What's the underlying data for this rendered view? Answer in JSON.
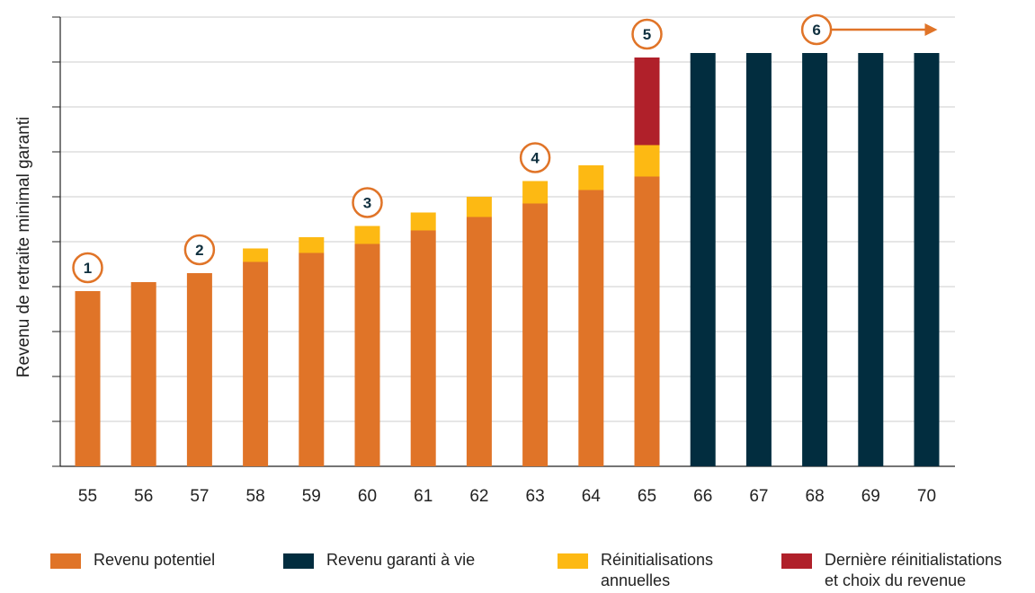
{
  "colors": {
    "potential": "#e07428",
    "lifetime": "#022d3f",
    "resets": "#fdb913",
    "final": "#b0202a",
    "badge": "#e07428",
    "grid": "#cccccc",
    "axis": "#222222"
  },
  "legend": [
    {
      "key": "potential",
      "lines": [
        "Revenu potentiel"
      ]
    },
    {
      "key": "lifetime",
      "lines": [
        "Revenu garanti à vie"
      ]
    },
    {
      "key": "resets",
      "lines": [
        "Réinitialisations",
        "annuelles"
      ]
    },
    {
      "key": "final",
      "lines": [
        "Dernière réinitialistations",
        "et choix du revenue"
      ]
    }
  ],
  "badges": [
    "1",
    "2",
    "3",
    "4",
    "5",
    "6"
  ],
  "chart_data": {
    "type": "bar",
    "stacked": true,
    "ylabel": "Revenu de retraite minimal garanti",
    "xlabel": "",
    "y_tick_labels_shown": false,
    "ylim": [
      0,
      10
    ],
    "grid": true,
    "legend_position": "bottom",
    "categories": [
      "55",
      "56",
      "57",
      "58",
      "59",
      "60",
      "61",
      "62",
      "63",
      "64",
      "65",
      "66",
      "67",
      "68",
      "69",
      "70"
    ],
    "series": [
      {
        "name": "Revenu potentiel",
        "key": "potential",
        "values": [
          3.9,
          4.1,
          4.3,
          4.55,
          4.75,
          4.95,
          5.25,
          5.55,
          5.85,
          6.15,
          6.45,
          0,
          0,
          0,
          0,
          0
        ]
      },
      {
        "name": "Revenu garanti à vie",
        "key": "lifetime",
        "values": [
          0,
          0,
          0,
          0,
          0,
          0,
          0,
          0,
          0,
          0,
          0,
          9.2,
          9.2,
          9.2,
          9.2,
          9.2
        ]
      },
      {
        "name": "Réinitialisations annuelles",
        "key": "resets",
        "values": [
          0,
          0,
          0,
          0.3,
          0.35,
          0.4,
          0.4,
          0.45,
          0.5,
          0.55,
          0.7,
          0,
          0,
          0,
          0,
          0
        ]
      },
      {
        "name": "Dernière réinitialistations et choix du revenue",
        "key": "final",
        "values": [
          0,
          0,
          0,
          0,
          0,
          0,
          0,
          0,
          0,
          0,
          1.95,
          0,
          0,
          0,
          0,
          0
        ]
      }
    ],
    "annotations": [
      {
        "label": "1",
        "category": "55"
      },
      {
        "label": "2",
        "category": "57"
      },
      {
        "label": "3",
        "category": "60"
      },
      {
        "label": "4",
        "category": "63"
      },
      {
        "label": "5",
        "category": "65"
      },
      {
        "label": "6",
        "category": "68",
        "arrow_to_category": "70"
      }
    ]
  }
}
